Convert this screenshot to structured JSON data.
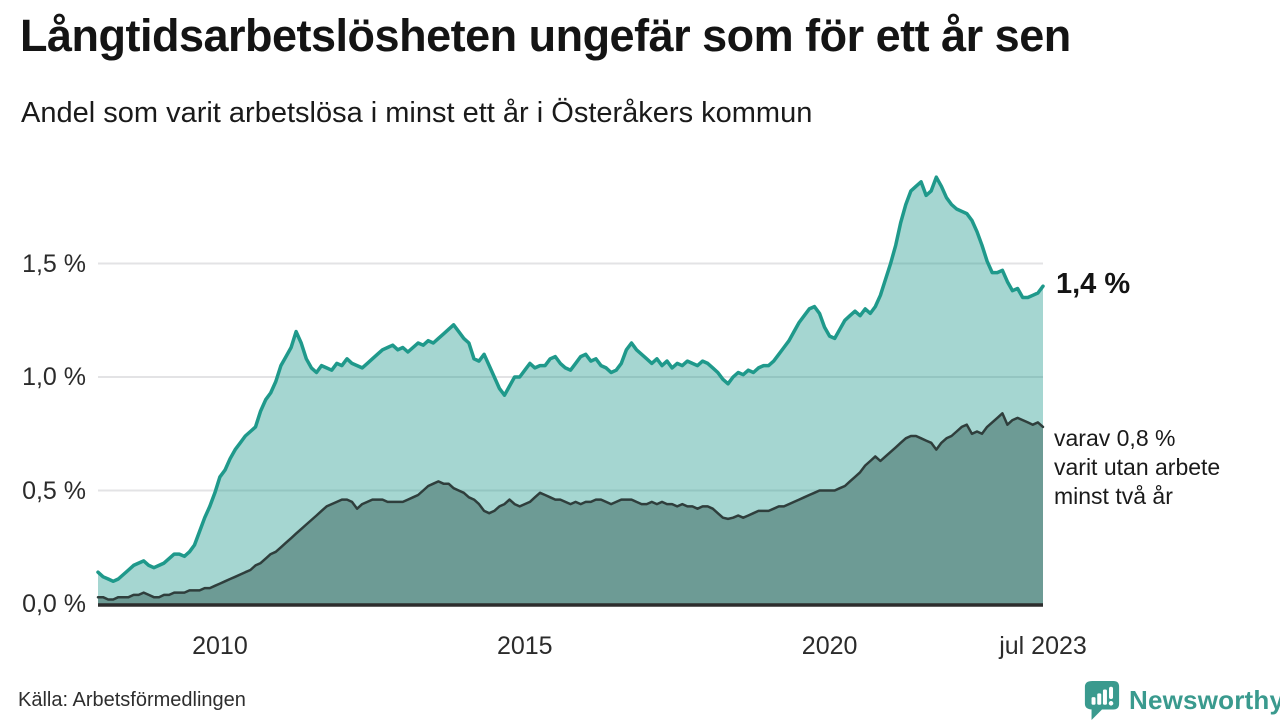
{
  "header": {
    "title": "Långtidsarbetslösheten ungefär som för ett år sen",
    "subtitle": "Andel som varit arbetslösa i minst ett år i Österåkers kommun"
  },
  "annotations": {
    "last_value_label": "1,4 %",
    "secondary_lines": [
      "varav 0,8 %",
      "varit utan arbete",
      "minst två år"
    ]
  },
  "source_label": "Källa: Arbetsförmedlingen",
  "branding": {
    "wordmark": "Newsworthy",
    "logo_icon": "newsworthy-speech-bubble-bar-chart-icon",
    "brand_color": "#3a9a8e"
  },
  "colors": {
    "line_1plus": "#1f998b",
    "fill_1plus_base": "#1f998b",
    "line_2plus": "#2f3e3c",
    "fill_2plus": "#6d9b95",
    "grid": "#e3e3e5",
    "baseline": "#2d2d2d",
    "axis_text": "#2b2b2b"
  },
  "chart_data": {
    "type": "area",
    "title": "Långtidsarbetslösheten ungefär som för ett år sen",
    "subtitle": "Andel som varit arbetslösa i minst ett år i Österåkers kommun",
    "unit": "%",
    "frequency": "monthly",
    "x_start": "2008-01",
    "x_end": "2023-07",
    "t_domain": [
      2008.0,
      2023.5
    ],
    "ylim": [
      0,
      1.95
    ],
    "grid": "horizontal",
    "y_ticks": [
      {
        "value": 0.0,
        "label": "0,0 %"
      },
      {
        "value": 0.5,
        "label": "0,5 %"
      },
      {
        "value": 1.0,
        "label": "1,0 %"
      },
      {
        "value": 1.5,
        "label": "1,5 %"
      }
    ],
    "x_ticks": [
      {
        "t": 2010.0,
        "label": "2010"
      },
      {
        "t": 2015.0,
        "label": "2015"
      },
      {
        "t": 2020.0,
        "label": "2020"
      },
      {
        "t": 2023.5,
        "label": "jul 2023"
      }
    ],
    "series": [
      {
        "name": "Arbetslösa minst ett år",
        "end_label": "1,4 %",
        "end_value": 1.4,
        "color": "#1f998b",
        "fill": "#1f998b",
        "fill_opacity": 0.4,
        "stroke_width": 3.5,
        "values": [
          0.14,
          0.12,
          0.11,
          0.1,
          0.11,
          0.13,
          0.15,
          0.17,
          0.18,
          0.19,
          0.17,
          0.16,
          0.17,
          0.18,
          0.2,
          0.22,
          0.22,
          0.21,
          0.23,
          0.26,
          0.32,
          0.38,
          0.43,
          0.49,
          0.56,
          0.59,
          0.64,
          0.68,
          0.71,
          0.74,
          0.76,
          0.78,
          0.85,
          0.9,
          0.93,
          0.98,
          1.05,
          1.09,
          1.13,
          1.2,
          1.15,
          1.08,
          1.04,
          1.02,
          1.05,
          1.04,
          1.03,
          1.06,
          1.05,
          1.08,
          1.06,
          1.05,
          1.04,
          1.06,
          1.08,
          1.1,
          1.12,
          1.13,
          1.14,
          1.12,
          1.13,
          1.11,
          1.13,
          1.15,
          1.14,
          1.16,
          1.15,
          1.17,
          1.19,
          1.21,
          1.23,
          1.2,
          1.17,
          1.15,
          1.08,
          1.07,
          1.1,
          1.05,
          1.0,
          0.95,
          0.92,
          0.96,
          1.0,
          1.0,
          1.03,
          1.06,
          1.04,
          1.05,
          1.05,
          1.08,
          1.09,
          1.06,
          1.04,
          1.03,
          1.06,
          1.09,
          1.1,
          1.07,
          1.08,
          1.05,
          1.04,
          1.02,
          1.03,
          1.06,
          1.12,
          1.15,
          1.12,
          1.1,
          1.08,
          1.06,
          1.08,
          1.05,
          1.07,
          1.04,
          1.06,
          1.05,
          1.07,
          1.06,
          1.05,
          1.07,
          1.06,
          1.04,
          1.02,
          0.99,
          0.97,
          1.0,
          1.02,
          1.01,
          1.03,
          1.02,
          1.04,
          1.05,
          1.05,
          1.07,
          1.1,
          1.13,
          1.16,
          1.2,
          1.24,
          1.27,
          1.3,
          1.31,
          1.28,
          1.22,
          1.18,
          1.17,
          1.21,
          1.25,
          1.27,
          1.29,
          1.27,
          1.3,
          1.28,
          1.31,
          1.36,
          1.43,
          1.5,
          1.58,
          1.68,
          1.76,
          1.82,
          1.84,
          1.86,
          1.8,
          1.82,
          1.88,
          1.84,
          1.79,
          1.76,
          1.74,
          1.73,
          1.72,
          1.69,
          1.64,
          1.58,
          1.51,
          1.46,
          1.46,
          1.47,
          1.42,
          1.38,
          1.39,
          1.35,
          1.35,
          1.36,
          1.37,
          1.4
        ]
      },
      {
        "name": "Arbetslösa minst två år",
        "end_label": "varav 0,8 % varit utan arbete minst två år",
        "end_value": 0.8,
        "color": "#2f3e3c",
        "fill": "#6d9b95",
        "fill_opacity": 1,
        "stroke_width": 2.5,
        "values": [
          0.03,
          0.03,
          0.02,
          0.02,
          0.03,
          0.03,
          0.03,
          0.04,
          0.04,
          0.05,
          0.04,
          0.03,
          0.03,
          0.04,
          0.04,
          0.05,
          0.05,
          0.05,
          0.06,
          0.06,
          0.06,
          0.07,
          0.07,
          0.08,
          0.09,
          0.1,
          0.11,
          0.12,
          0.13,
          0.14,
          0.15,
          0.17,
          0.18,
          0.2,
          0.22,
          0.23,
          0.25,
          0.27,
          0.29,
          0.31,
          0.33,
          0.35,
          0.37,
          0.39,
          0.41,
          0.43,
          0.44,
          0.45,
          0.46,
          0.46,
          0.45,
          0.42,
          0.44,
          0.45,
          0.46,
          0.46,
          0.46,
          0.45,
          0.45,
          0.45,
          0.45,
          0.46,
          0.47,
          0.48,
          0.5,
          0.52,
          0.53,
          0.54,
          0.53,
          0.53,
          0.51,
          0.5,
          0.49,
          0.47,
          0.46,
          0.44,
          0.41,
          0.4,
          0.41,
          0.43,
          0.44,
          0.46,
          0.44,
          0.43,
          0.44,
          0.45,
          0.47,
          0.49,
          0.48,
          0.47,
          0.46,
          0.46,
          0.45,
          0.44,
          0.45,
          0.44,
          0.45,
          0.45,
          0.46,
          0.46,
          0.45,
          0.44,
          0.45,
          0.46,
          0.46,
          0.46,
          0.45,
          0.44,
          0.44,
          0.45,
          0.44,
          0.45,
          0.44,
          0.44,
          0.43,
          0.44,
          0.43,
          0.43,
          0.42,
          0.43,
          0.43,
          0.42,
          0.4,
          0.38,
          0.375,
          0.38,
          0.39,
          0.38,
          0.39,
          0.4,
          0.41,
          0.41,
          0.41,
          0.42,
          0.43,
          0.43,
          0.44,
          0.45,
          0.46,
          0.47,
          0.48,
          0.49,
          0.5,
          0.5,
          0.5,
          0.5,
          0.51,
          0.52,
          0.54,
          0.56,
          0.58,
          0.61,
          0.63,
          0.65,
          0.63,
          0.65,
          0.67,
          0.69,
          0.71,
          0.73,
          0.74,
          0.74,
          0.73,
          0.72,
          0.71,
          0.68,
          0.71,
          0.73,
          0.74,
          0.76,
          0.78,
          0.79,
          0.75,
          0.76,
          0.75,
          0.78,
          0.8,
          0.82,
          0.84,
          0.79,
          0.81,
          0.82,
          0.81,
          0.8,
          0.79,
          0.8,
          0.78
        ]
      }
    ]
  }
}
